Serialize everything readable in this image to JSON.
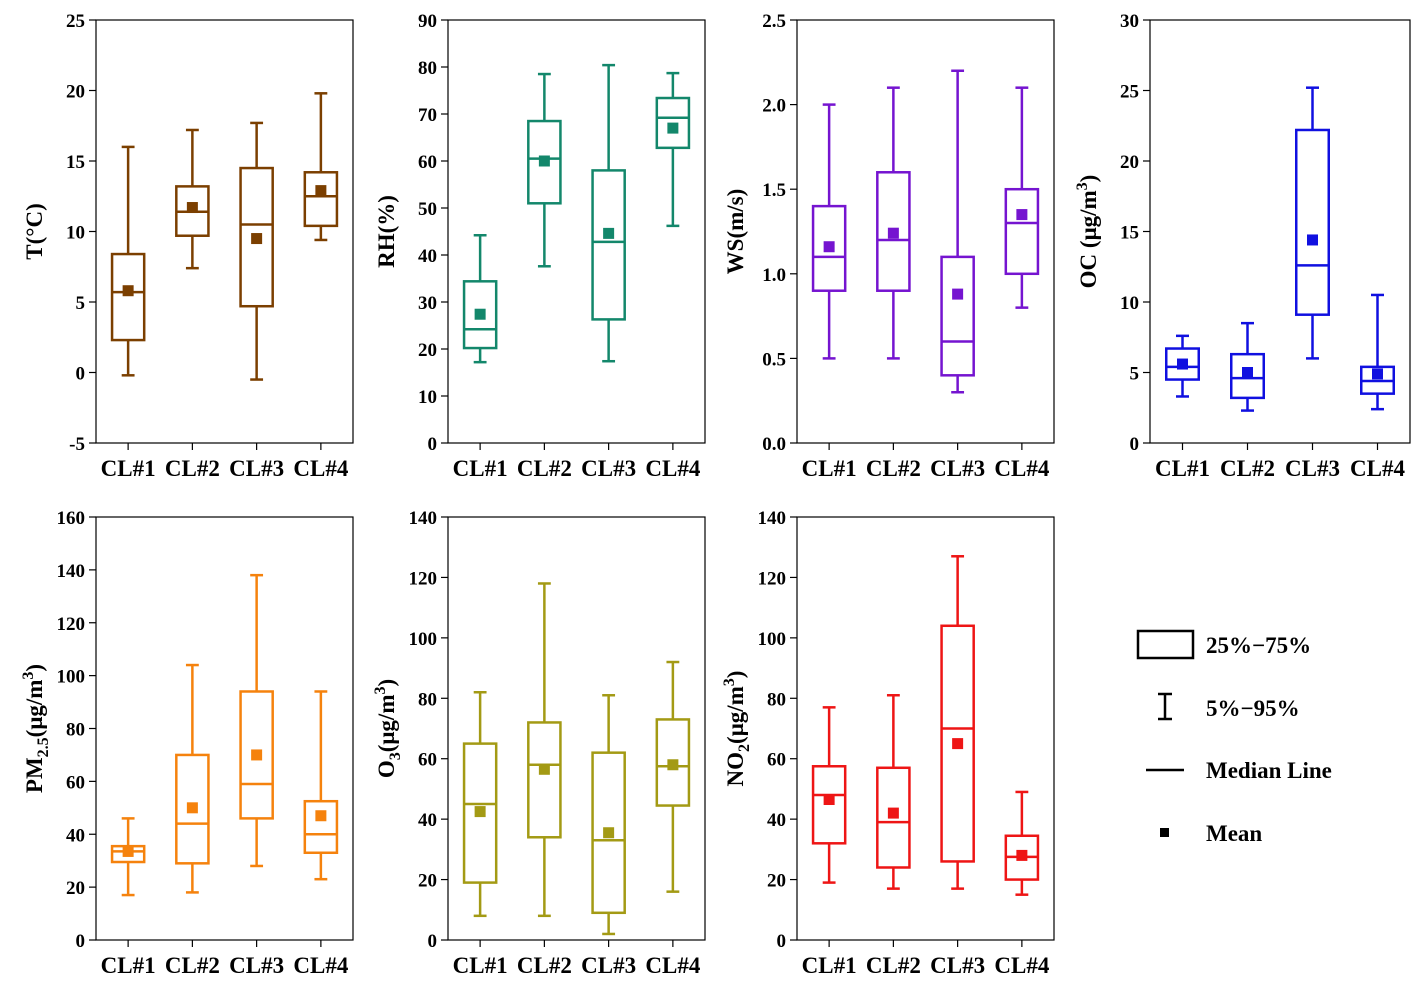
{
  "chart_data": [
    {
      "type": "box",
      "ylabel": "T(°C)",
      "ylim": [
        -5,
        25
      ],
      "yticks": [
        -5,
        0,
        5,
        10,
        15,
        20,
        25
      ],
      "color": "#7B3F00",
      "categories": [
        "CL#1",
        "CL#2",
        "CL#3",
        "CL#4"
      ],
      "boxes": [
        {
          "p5": -0.2,
          "q1": 2.3,
          "median": 5.7,
          "q3": 8.4,
          "p95": 16.0,
          "mean": 5.8
        },
        {
          "p5": 7.4,
          "q1": 9.7,
          "median": 11.4,
          "q3": 13.2,
          "p95": 17.2,
          "mean": 11.7
        },
        {
          "p5": -0.5,
          "q1": 4.7,
          "median": 10.5,
          "q3": 14.5,
          "p95": 17.7,
          "mean": 9.5
        },
        {
          "p5": 9.4,
          "q1": 10.4,
          "median": 12.5,
          "q3": 14.2,
          "p95": 19.8,
          "mean": 12.9
        }
      ]
    },
    {
      "type": "box",
      "ylabel": "RH(%)",
      "ylim": [
        0,
        90
      ],
      "yticks": [
        0,
        10,
        20,
        30,
        40,
        50,
        60,
        70,
        80,
        90
      ],
      "color": "#13876B",
      "categories": [
        "CL#1",
        "CL#2",
        "CL#3",
        "CL#4"
      ],
      "boxes": [
        {
          "p5": 17.2,
          "q1": 20.2,
          "median": 24.2,
          "q3": 34.4,
          "p95": 44.2,
          "mean": 27.4
        },
        {
          "p5": 37.6,
          "q1": 51.0,
          "median": 60.5,
          "q3": 68.5,
          "p95": 78.5,
          "mean": 60.0
        },
        {
          "p5": 17.4,
          "q1": 26.3,
          "median": 42.8,
          "q3": 58.0,
          "p95": 80.4,
          "mean": 44.6
        },
        {
          "p5": 46.2,
          "q1": 62.8,
          "median": 69.2,
          "q3": 73.4,
          "p95": 78.7,
          "mean": 67.0
        }
      ]
    },
    {
      "type": "box",
      "ylabel": "WS(m/s)",
      "ylim": [
        0,
        2.5
      ],
      "yticks": [
        0.0,
        0.5,
        1.0,
        1.5,
        2.0,
        2.5
      ],
      "ytick_labels": [
        "0.0",
        "0.5",
        "1.0",
        "1.5",
        "2.0",
        "2.5"
      ],
      "color": "#7514D0",
      "categories": [
        "CL#1",
        "CL#2",
        "CL#3",
        "CL#4"
      ],
      "boxes": [
        {
          "p5": 0.5,
          "q1": 0.9,
          "median": 1.1,
          "q3": 1.4,
          "p95": 2.0,
          "mean": 1.16
        },
        {
          "p5": 0.5,
          "q1": 0.9,
          "median": 1.2,
          "q3": 1.6,
          "p95": 2.1,
          "mean": 1.24
        },
        {
          "p5": 0.3,
          "q1": 0.4,
          "median": 0.6,
          "q3": 1.1,
          "p95": 2.2,
          "mean": 0.88
        },
        {
          "p5": 0.8,
          "q1": 1.0,
          "median": 1.3,
          "q3": 1.5,
          "p95": 2.1,
          "mean": 1.35
        }
      ]
    },
    {
      "type": "box",
      "ylabel": "OC (μg/m",
      "ylabel_sup": "3",
      "ylabel_end": ")",
      "ylim": [
        0,
        30
      ],
      "yticks": [
        0,
        5,
        10,
        15,
        20,
        25,
        30
      ],
      "color": "#1010E0",
      "categories": [
        "CL#1",
        "CL#2",
        "CL#3",
        "CL#4"
      ],
      "boxes": [
        {
          "p5": 3.3,
          "q1": 4.5,
          "median": 5.4,
          "q3": 6.7,
          "p95": 7.6,
          "mean": 5.6
        },
        {
          "p5": 2.3,
          "q1": 3.2,
          "median": 4.6,
          "q3": 6.3,
          "p95": 8.5,
          "mean": 5.0
        },
        {
          "p5": 6.0,
          "q1": 9.1,
          "median": 12.6,
          "q3": 22.2,
          "p95": 25.2,
          "mean": 14.4
        },
        {
          "p5": 2.4,
          "q1": 3.5,
          "median": 4.4,
          "q3": 5.4,
          "p95": 10.5,
          "mean": 4.9
        }
      ]
    },
    {
      "type": "box",
      "ylabel": "PM",
      "ylabel_sub": "2.5",
      "ylabel_mid": "(μg/m",
      "ylabel_sup": "3",
      "ylabel_end": ")",
      "ylim": [
        0,
        160
      ],
      "yticks": [
        0,
        20,
        40,
        60,
        80,
        100,
        120,
        140,
        160
      ],
      "color": "#F5820D",
      "categories": [
        "CL#1",
        "CL#2",
        "CL#3",
        "CL#4"
      ],
      "boxes": [
        {
          "p5": 17,
          "q1": 29.5,
          "median": 33.5,
          "q3": 35.5,
          "p95": 46,
          "mean": 33.5
        },
        {
          "p5": 18,
          "q1": 29,
          "median": 44,
          "q3": 70,
          "p95": 104,
          "mean": 50
        },
        {
          "p5": 28,
          "q1": 46,
          "median": 59,
          "q3": 94,
          "p95": 138,
          "mean": 70
        },
        {
          "p5": 23,
          "q1": 33,
          "median": 40,
          "q3": 52.5,
          "p95": 94,
          "mean": 47
        }
      ]
    },
    {
      "type": "box",
      "ylabel": "O",
      "ylabel_sub": "3",
      "ylabel_mid": "(μg/m",
      "ylabel_sup": "3",
      "ylabel_end": ")",
      "ylim": [
        0,
        140
      ],
      "yticks": [
        0,
        20,
        40,
        60,
        80,
        100,
        120,
        140
      ],
      "color": "#A39A14",
      "categories": [
        "CL#1",
        "CL#2",
        "CL#3",
        "CL#4"
      ],
      "boxes": [
        {
          "p5": 8,
          "q1": 19,
          "median": 45,
          "q3": 65,
          "p95": 82,
          "mean": 42.5
        },
        {
          "p5": 8,
          "q1": 34,
          "median": 58,
          "q3": 72,
          "p95": 118,
          "mean": 56.5
        },
        {
          "p5": 2,
          "q1": 9,
          "median": 33,
          "q3": 62,
          "p95": 81,
          "mean": 35.5
        },
        {
          "p5": 16,
          "q1": 44.5,
          "median": 57.5,
          "q3": 73,
          "p95": 92,
          "mean": 58
        }
      ]
    },
    {
      "type": "box",
      "ylabel": "NO",
      "ylabel_sub": "2",
      "ylabel_mid": "(μg/m",
      "ylabel_sup": "3",
      "ylabel_end": ")",
      "ylim": [
        0,
        140
      ],
      "yticks": [
        0,
        20,
        40,
        60,
        80,
        100,
        120,
        140
      ],
      "color": "#EE1515",
      "categories": [
        "CL#1",
        "CL#2",
        "CL#3",
        "CL#4"
      ],
      "boxes": [
        {
          "p5": 19,
          "q1": 32,
          "median": 48,
          "q3": 57.5,
          "p95": 77,
          "mean": 46.5
        },
        {
          "p5": 17,
          "q1": 24,
          "median": 39,
          "q3": 57,
          "p95": 81,
          "mean": 42
        },
        {
          "p5": 17,
          "q1": 26,
          "median": 70,
          "q3": 104,
          "p95": 127,
          "mean": 65
        },
        {
          "p5": 15,
          "q1": 20,
          "median": 27.5,
          "q3": 34.5,
          "p95": 49,
          "mean": 28
        }
      ]
    }
  ],
  "legend": {
    "items": [
      {
        "icon": "box-legend-icon",
        "label": "25%−75%"
      },
      {
        "icon": "whisker-legend-icon",
        "label": "5%−95%"
      },
      {
        "icon": "median-line-legend-icon",
        "label": "Median Line"
      },
      {
        "icon": "mean-marker-legend-icon",
        "label": "Mean"
      }
    ]
  }
}
